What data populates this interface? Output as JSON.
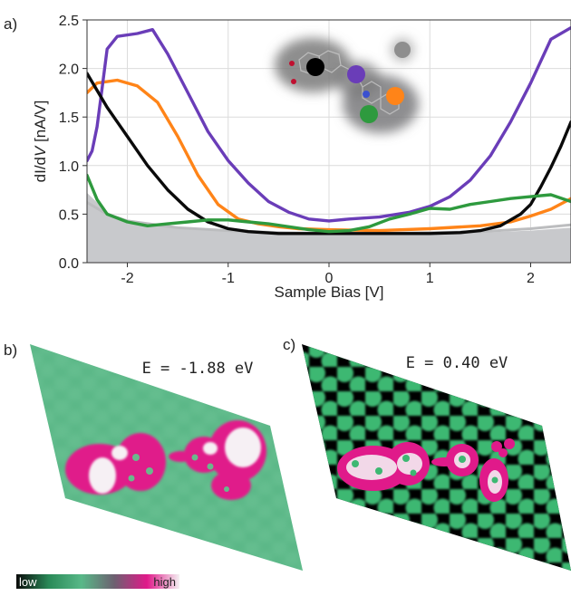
{
  "panels": {
    "a": "a)",
    "b": "b)",
    "c": "c)"
  },
  "energies": {
    "b": "E = -1.88 eV",
    "c": "E = 0.40 eV"
  },
  "colorbar": {
    "low": "low",
    "high": "high",
    "colors": [
      "#0b0b0b",
      "#2a8a58",
      "#58b888",
      "#6c6070",
      "#e01a8a",
      "#f4f0f2"
    ]
  },
  "maps": {
    "b": {
      "background": "#5cb888",
      "lattice": "#6cc294"
    },
    "c": {
      "background": "#000000",
      "lattice": "#3db872"
    }
  },
  "chart_data": {
    "type": "line",
    "title": "",
    "xlabel": "Sample Bias [V]",
    "ylabel_parts": [
      "dI/d",
      "V",
      " [nA/V]"
    ],
    "xlim": [
      -2.4,
      2.4
    ],
    "ylim": [
      0.0,
      2.5
    ],
    "xticks": [
      "-2",
      "-1",
      "0",
      "1",
      "2"
    ],
    "xtick_values": [
      -2,
      -1,
      0,
      1,
      2
    ],
    "yticks": [
      "0.0",
      "0.5",
      "1.0",
      "1.5",
      "2.0",
      "2.5"
    ],
    "ytick_values": [
      0.0,
      0.5,
      1.0,
      1.5,
      2.0,
      2.5
    ],
    "grid": true,
    "background_fill": {
      "color": "#c8c9cc",
      "points": [
        [
          -2.4,
          0.72
        ],
        [
          -2.2,
          0.52
        ],
        [
          -2.0,
          0.43
        ],
        [
          -1.5,
          0.35
        ],
        [
          -1.0,
          0.32
        ],
        [
          -0.5,
          0.3
        ],
        [
          0.0,
          0.3
        ],
        [
          0.5,
          0.3
        ],
        [
          1.0,
          0.3
        ],
        [
          1.5,
          0.31
        ],
        [
          2.0,
          0.33
        ],
        [
          2.4,
          0.36
        ]
      ]
    },
    "series": [
      {
        "color": "#bcbdbf",
        "points": [
          [
            -2.4,
            0.62
          ],
          [
            -2.2,
            0.5
          ],
          [
            -2.0,
            0.43
          ],
          [
            -1.5,
            0.36
          ],
          [
            -1.0,
            0.33
          ],
          [
            -0.5,
            0.31
          ],
          [
            0.0,
            0.3
          ],
          [
            0.5,
            0.3
          ],
          [
            1.0,
            0.31
          ],
          [
            1.5,
            0.32
          ],
          [
            2.0,
            0.35
          ],
          [
            2.4,
            0.39
          ]
        ]
      },
      {
        "color": "#ff8418",
        "points": [
          [
            -2.4,
            1.75
          ],
          [
            -2.3,
            1.85
          ],
          [
            -2.1,
            1.88
          ],
          [
            -1.9,
            1.82
          ],
          [
            -1.7,
            1.65
          ],
          [
            -1.5,
            1.3
          ],
          [
            -1.3,
            0.9
          ],
          [
            -1.1,
            0.6
          ],
          [
            -0.9,
            0.45
          ],
          [
            -0.7,
            0.4
          ],
          [
            -0.5,
            0.37
          ],
          [
            -0.3,
            0.35
          ],
          [
            0.0,
            0.34
          ],
          [
            0.5,
            0.33
          ],
          [
            1.0,
            0.35
          ],
          [
            1.5,
            0.38
          ],
          [
            1.8,
            0.42
          ],
          [
            2.0,
            0.48
          ],
          [
            2.2,
            0.55
          ],
          [
            2.4,
            0.66
          ]
        ]
      },
      {
        "color": "#6a3db8",
        "points": [
          [
            -2.4,
            1.05
          ],
          [
            -2.35,
            1.15
          ],
          [
            -2.3,
            1.4
          ],
          [
            -2.25,
            1.8
          ],
          [
            -2.2,
            2.2
          ],
          [
            -2.1,
            2.33
          ],
          [
            -1.9,
            2.36
          ],
          [
            -1.75,
            2.4
          ],
          [
            -1.6,
            2.15
          ],
          [
            -1.4,
            1.75
          ],
          [
            -1.2,
            1.35
          ],
          [
            -1.0,
            1.05
          ],
          [
            -0.8,
            0.82
          ],
          [
            -0.6,
            0.63
          ],
          [
            -0.4,
            0.52
          ],
          [
            -0.2,
            0.45
          ],
          [
            0.0,
            0.43
          ],
          [
            0.2,
            0.45
          ],
          [
            0.5,
            0.47
          ],
          [
            0.8,
            0.52
          ],
          [
            1.0,
            0.58
          ],
          [
            1.2,
            0.68
          ],
          [
            1.4,
            0.85
          ],
          [
            1.6,
            1.1
          ],
          [
            1.8,
            1.45
          ],
          [
            2.0,
            1.85
          ],
          [
            2.2,
            2.3
          ],
          [
            2.4,
            2.42
          ]
        ]
      },
      {
        "color": "#0a0a0a",
        "points": [
          [
            -2.4,
            1.95
          ],
          [
            -2.2,
            1.6
          ],
          [
            -2.0,
            1.3
          ],
          [
            -1.8,
            1.0
          ],
          [
            -1.6,
            0.75
          ],
          [
            -1.4,
            0.55
          ],
          [
            -1.2,
            0.42
          ],
          [
            -1.0,
            0.35
          ],
          [
            -0.8,
            0.32
          ],
          [
            -0.5,
            0.3
          ],
          [
            0.0,
            0.3
          ],
          [
            0.5,
            0.3
          ],
          [
            1.0,
            0.3
          ],
          [
            1.3,
            0.31
          ],
          [
            1.5,
            0.33
          ],
          [
            1.7,
            0.38
          ],
          [
            1.9,
            0.5
          ],
          [
            2.0,
            0.6
          ],
          [
            2.1,
            0.78
          ],
          [
            2.2,
            0.98
          ],
          [
            2.3,
            1.2
          ],
          [
            2.4,
            1.45
          ]
        ]
      },
      {
        "color": "#2e9a3e",
        "points": [
          [
            -2.4,
            0.9
          ],
          [
            -2.3,
            0.65
          ],
          [
            -2.2,
            0.5
          ],
          [
            -2.0,
            0.42
          ],
          [
            -1.8,
            0.38
          ],
          [
            -1.6,
            0.4
          ],
          [
            -1.4,
            0.42
          ],
          [
            -1.2,
            0.44
          ],
          [
            -1.0,
            0.44
          ],
          [
            -0.8,
            0.42
          ],
          [
            -0.6,
            0.4
          ],
          [
            -0.4,
            0.37
          ],
          [
            -0.2,
            0.34
          ],
          [
            0.0,
            0.32
          ],
          [
            0.2,
            0.33
          ],
          [
            0.4,
            0.37
          ],
          [
            0.6,
            0.45
          ],
          [
            0.8,
            0.5
          ],
          [
            1.0,
            0.56
          ],
          [
            1.2,
            0.55
          ],
          [
            1.4,
            0.6
          ],
          [
            1.6,
            0.63
          ],
          [
            1.8,
            0.66
          ],
          [
            2.0,
            0.68
          ],
          [
            2.2,
            0.7
          ],
          [
            2.4,
            0.63
          ]
        ]
      }
    ]
  }
}
